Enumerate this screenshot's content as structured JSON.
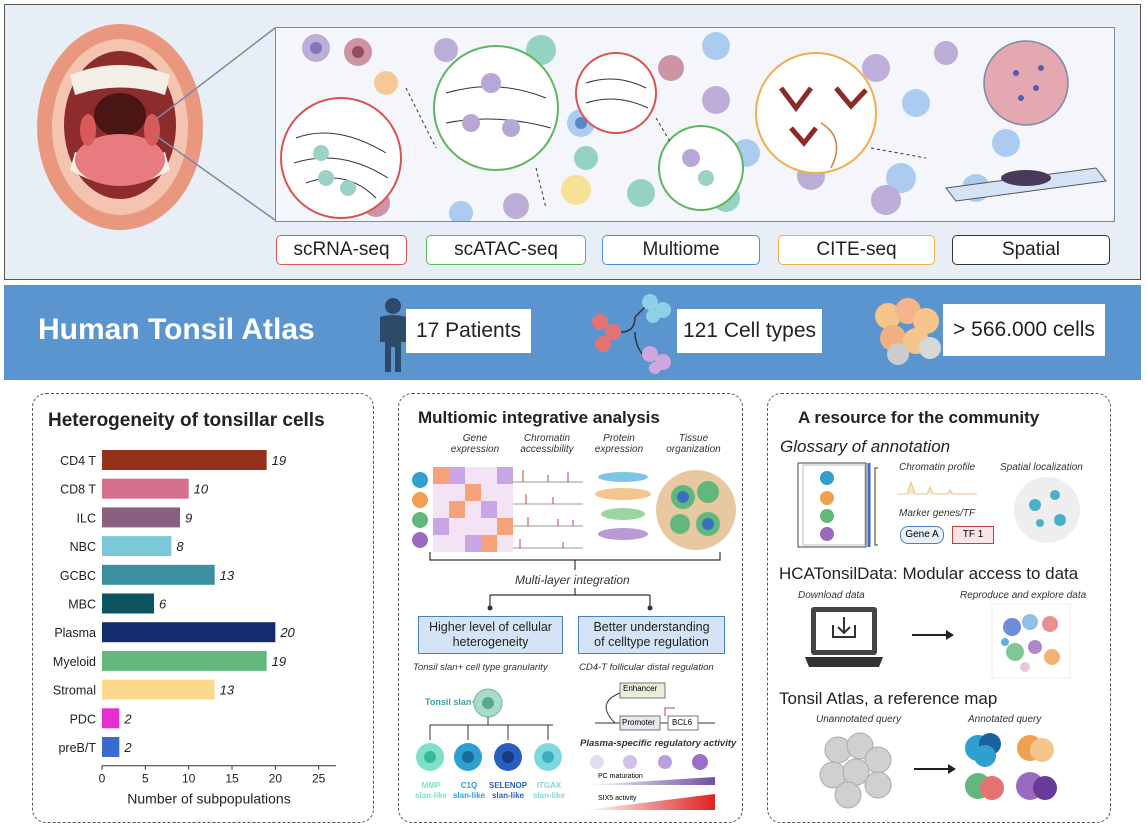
{
  "techniques": [
    {
      "label": "scRNA-seq",
      "color": "#d9534f"
    },
    {
      "label": "scATAC-seq",
      "color": "#5cb85c"
    },
    {
      "label": "Multiome",
      "color": "#4a90d9"
    },
    {
      "label": "CITE-seq",
      "color": "#f0ad4e"
    },
    {
      "label": "Spatial",
      "color": "#333333"
    }
  ],
  "banner": {
    "title": "Human Tonsil Atlas",
    "patients": "17 Patients",
    "cell_types": "121 Cell types",
    "cells": "> 566.000 cells",
    "color": "#5b95cf"
  },
  "panel1": {
    "title": "Heterogeneity of tonsillar cells",
    "xlabel": "Number of subpopulations"
  },
  "chart_data": {
    "type": "bar",
    "orientation": "horizontal",
    "categories": [
      "CD4 T",
      "CD8 T",
      "ILC",
      "NBC",
      "GCBC",
      "MBC",
      "Plasma",
      "Myeloid",
      "Stromal",
      "PDC",
      "preB/T"
    ],
    "values": [
      19,
      10,
      9,
      8,
      13,
      6,
      20,
      19,
      13,
      2,
      2
    ],
    "colors": [
      "#96321c",
      "#d4708e",
      "#8a6080",
      "#7cc8d8",
      "#3a8fa0",
      "#0d5560",
      "#132c6e",
      "#62b87c",
      "#fbd88c",
      "#e62fd2",
      "#3a6ad0"
    ],
    "xlabel": "Number of subpopulations",
    "xticks": [
      0,
      5,
      10,
      15,
      20,
      25
    ],
    "xlim": [
      0,
      27
    ]
  },
  "panel2": {
    "title": "Multiomic integrative analysis",
    "col_labels": [
      "Gene expression",
      "Chromatin accessibility",
      "Protein expression",
      "Tissue organization"
    ],
    "integration": "Multi-layer integration",
    "box_left": "Higher level of cellular heterogeneity",
    "box_right": "Better understanding of celltype regulation",
    "caption_left": "Tonsil slan+ cell type granularity",
    "caption_right": "CD4-T follicular distal regulation",
    "slan_label": "Tonsil slan+",
    "subtypes": [
      {
        "name": "MMP",
        "sub": "slan-like",
        "color": "#7ee0c8"
      },
      {
        "name": "C1Q",
        "sub": "slan-like",
        "color": "#2f9fd0"
      },
      {
        "name": "SELENOP",
        "sub": "slan-like",
        "color": "#2b5fbf"
      },
      {
        "name": "ITGAX",
        "sub": "slan-like",
        "color": "#7fd7e0"
      }
    ],
    "enhancer": "Enhancer",
    "promoter": "Promoter",
    "gene": "BCL6",
    "plasma_title": "Plasma-specific regulatory activity",
    "pc_maturation": "PC maturation",
    "six5": "SIX5 activity"
  },
  "panel3": {
    "title": "A resource for the community",
    "glossary": "Glossary of annotation",
    "chromatin": "Chromatin profile",
    "spatial": "Spatial localization",
    "marker": "Marker genes/TF",
    "gene_a": "Gene A",
    "tf1": "TF 1",
    "hca": "HCATonsilData: Modular access to data",
    "download": "Download data",
    "reproduce": "Reproduce and explore data",
    "reference": "Tonsil Atlas, a reference map",
    "unannotated": "Unannotated query",
    "annotated": "Annotated query"
  }
}
